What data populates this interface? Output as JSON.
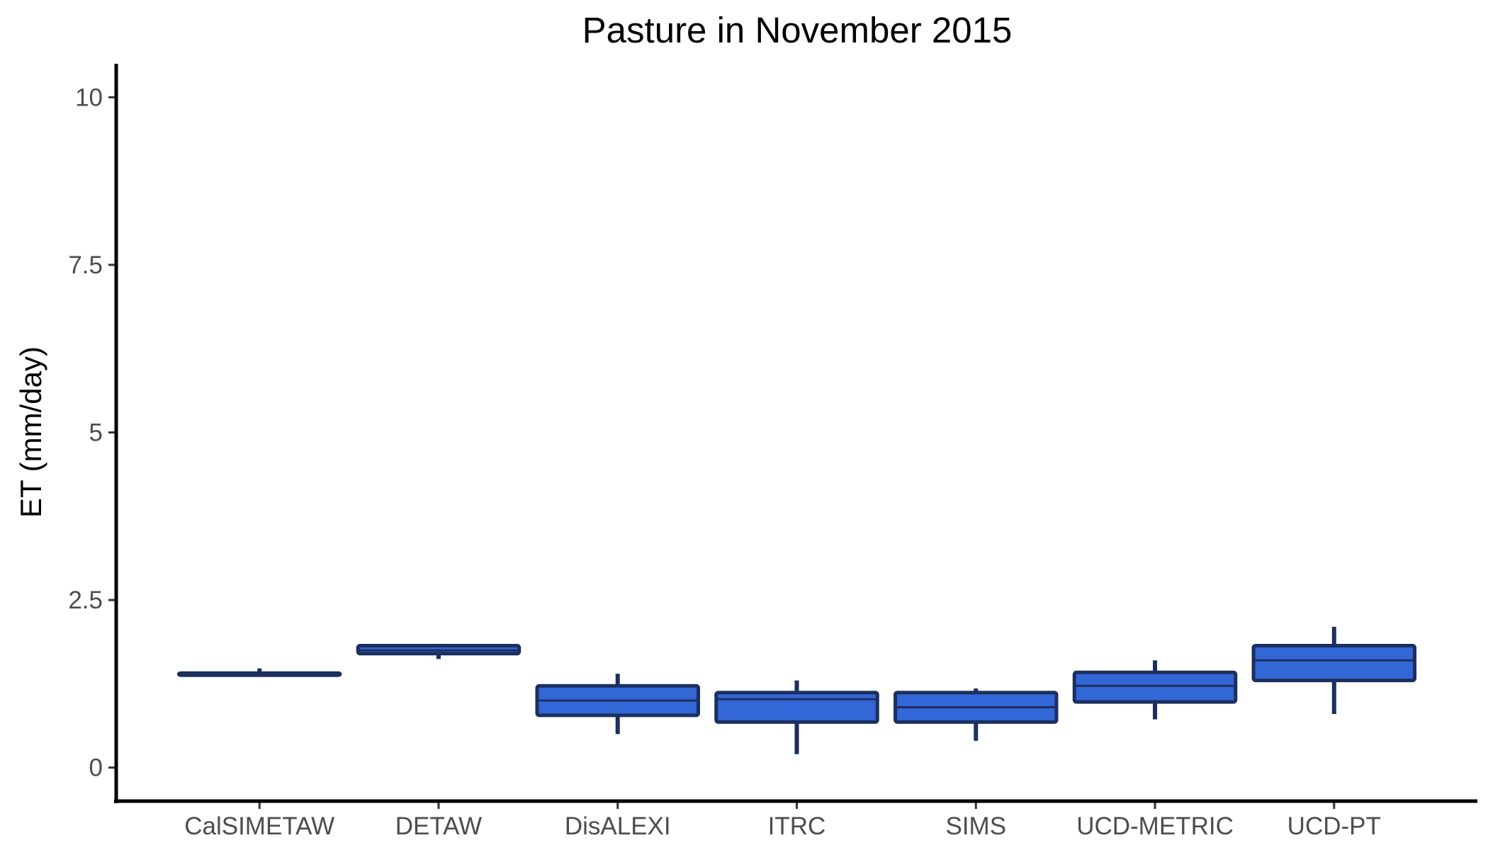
{
  "chart_data": {
    "type": "boxplot",
    "title": "Pasture in November 2015",
    "xlabel": "",
    "ylabel": "ET (mm/day)",
    "ylim": [
      -0.5,
      10.5
    ],
    "yticks": [
      0,
      2.5,
      5,
      7.5,
      10
    ],
    "ytick_labels": [
      "0",
      "2.5",
      "5",
      "7.5",
      "10"
    ],
    "grid": false,
    "legend": "none",
    "box_fill": "#3366d6",
    "box_stroke": "#1c2f5e",
    "categories": [
      "CalSIMETAW",
      "DETAW",
      "DisALEXI",
      "ITRC",
      "SIMS",
      "UCD-METRIC",
      "UCD-PT"
    ],
    "boxes": [
      {
        "category": "CalSIMETAW",
        "min": 1.38,
        "q1": 1.38,
        "median": 1.4,
        "q3": 1.41,
        "max": 1.48
      },
      {
        "category": "DETAW",
        "min": 1.62,
        "q1": 1.7,
        "median": 1.75,
        "q3": 1.82,
        "max": 1.82
      },
      {
        "category": "DisALEXI",
        "min": 0.5,
        "q1": 0.78,
        "median": 1.0,
        "q3": 1.22,
        "max": 1.4
      },
      {
        "category": "ITRC",
        "min": 0.2,
        "q1": 0.68,
        "median": 1.02,
        "q3": 1.12,
        "max": 1.3
      },
      {
        "category": "SIMS",
        "min": 0.4,
        "q1": 0.68,
        "median": 0.9,
        "q3": 1.12,
        "max": 1.18
      },
      {
        "category": "UCD-METRIC",
        "min": 0.72,
        "q1": 0.98,
        "median": 1.22,
        "q3": 1.42,
        "max": 1.6
      },
      {
        "category": "UCD-PT",
        "min": 0.8,
        "q1": 1.3,
        "median": 1.6,
        "q3": 1.82,
        "max": 2.1
      }
    ]
  }
}
